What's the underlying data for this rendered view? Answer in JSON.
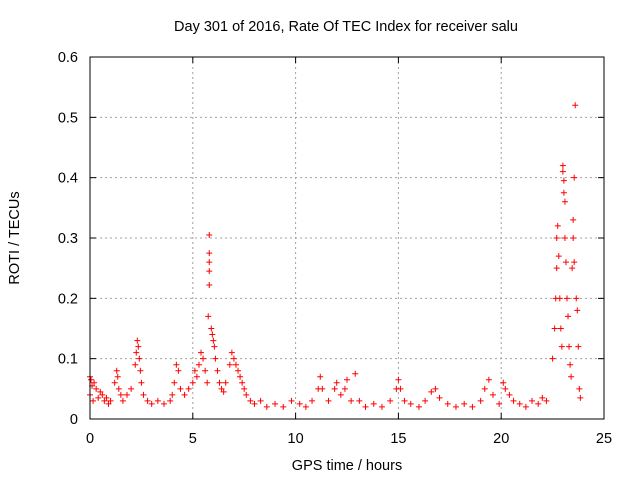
{
  "chart_data": {
    "type": "scatter",
    "title": "Day 301 of 2016, Rate Of TEC Index for receiver salu",
    "xlabel": "GPS time / hours",
    "ylabel": "ROTI / TECUs",
    "xlim": [
      0,
      25
    ],
    "ylim": [
      0,
      0.6
    ],
    "x_ticks": [
      0,
      5,
      10,
      15,
      20,
      25
    ],
    "x_tick_labels": [
      "0",
      "5",
      "10",
      "15",
      "20",
      "25"
    ],
    "y_ticks": [
      0,
      0.1,
      0.2,
      0.3,
      0.4,
      0.5,
      0.6
    ],
    "y_tick_labels": [
      "0",
      "0.1",
      "0.2",
      "0.3",
      "0.4",
      "0.5",
      "0.6"
    ],
    "grid": true,
    "marker": "plus",
    "color": "#ff0000",
    "series": [
      {
        "name": "ROTI",
        "points": [
          [
            0.0,
            0.07
          ],
          [
            0.0,
            0.04
          ],
          [
            0.05,
            0.065
          ],
          [
            0.1,
            0.055
          ],
          [
            0.15,
            0.03
          ],
          [
            0.2,
            0.06
          ],
          [
            0.3,
            0.05
          ],
          [
            0.4,
            0.035
          ],
          [
            0.5,
            0.045
          ],
          [
            0.6,
            0.04
          ],
          [
            0.7,
            0.03
          ],
          [
            0.8,
            0.035
          ],
          [
            0.9,
            0.025
          ],
          [
            1.0,
            0.03
          ],
          [
            1.2,
            0.06
          ],
          [
            1.3,
            0.08
          ],
          [
            1.35,
            0.07
          ],
          [
            1.4,
            0.05
          ],
          [
            1.5,
            0.04
          ],
          [
            1.6,
            0.03
          ],
          [
            1.8,
            0.04
          ],
          [
            2.0,
            0.05
          ],
          [
            2.2,
            0.09
          ],
          [
            2.25,
            0.11
          ],
          [
            2.3,
            0.13
          ],
          [
            2.35,
            0.12
          ],
          [
            2.4,
            0.1
          ],
          [
            2.45,
            0.08
          ],
          [
            2.5,
            0.06
          ],
          [
            2.6,
            0.04
          ],
          [
            2.8,
            0.03
          ],
          [
            3.0,
            0.025
          ],
          [
            3.3,
            0.03
          ],
          [
            3.6,
            0.025
          ],
          [
            3.9,
            0.03
          ],
          [
            4.0,
            0.04
          ],
          [
            4.1,
            0.06
          ],
          [
            4.2,
            0.09
          ],
          [
            4.3,
            0.08
          ],
          [
            4.4,
            0.05
          ],
          [
            4.6,
            0.04
          ],
          [
            4.8,
            0.05
          ],
          [
            5.0,
            0.06
          ],
          [
            5.1,
            0.08
          ],
          [
            5.2,
            0.07
          ],
          [
            5.3,
            0.09
          ],
          [
            5.4,
            0.11
          ],
          [
            5.5,
            0.1
          ],
          [
            5.6,
            0.08
          ],
          [
            5.7,
            0.06
          ],
          [
            5.75,
            0.17
          ],
          [
            5.8,
            0.305
          ],
          [
            5.8,
            0.275
          ],
          [
            5.8,
            0.26
          ],
          [
            5.8,
            0.245
          ],
          [
            5.8,
            0.222
          ],
          [
            5.9,
            0.15
          ],
          [
            5.95,
            0.14
          ],
          [
            6.0,
            0.13
          ],
          [
            6.05,
            0.12
          ],
          [
            6.1,
            0.1
          ],
          [
            6.2,
            0.08
          ],
          [
            6.3,
            0.06
          ],
          [
            6.4,
            0.05
          ],
          [
            6.5,
            0.045
          ],
          [
            6.6,
            0.06
          ],
          [
            6.8,
            0.09
          ],
          [
            6.9,
            0.11
          ],
          [
            7.0,
            0.1
          ],
          [
            7.1,
            0.09
          ],
          [
            7.2,
            0.08
          ],
          [
            7.3,
            0.07
          ],
          [
            7.4,
            0.06
          ],
          [
            7.5,
            0.05
          ],
          [
            7.6,
            0.04
          ],
          [
            7.8,
            0.03
          ],
          [
            8.0,
            0.025
          ],
          [
            8.3,
            0.03
          ],
          [
            8.6,
            0.02
          ],
          [
            9.0,
            0.025
          ],
          [
            9.4,
            0.02
          ],
          [
            9.8,
            0.03
          ],
          [
            10.2,
            0.025
          ],
          [
            10.5,
            0.02
          ],
          [
            10.8,
            0.03
          ],
          [
            11.1,
            0.05
          ],
          [
            11.2,
            0.07
          ],
          [
            11.3,
            0.05
          ],
          [
            11.6,
            0.03
          ],
          [
            11.9,
            0.05
          ],
          [
            12.0,
            0.06
          ],
          [
            12.2,
            0.04
          ],
          [
            12.4,
            0.05
          ],
          [
            12.5,
            0.065
          ],
          [
            12.7,
            0.03
          ],
          [
            12.9,
            0.075
          ],
          [
            13.1,
            0.03
          ],
          [
            13.4,
            0.02
          ],
          [
            13.8,
            0.025
          ],
          [
            14.2,
            0.02
          ],
          [
            14.6,
            0.03
          ],
          [
            14.9,
            0.05
          ],
          [
            15.0,
            0.065
          ],
          [
            15.1,
            0.05
          ],
          [
            15.3,
            0.03
          ],
          [
            15.6,
            0.025
          ],
          [
            16.0,
            0.02
          ],
          [
            16.3,
            0.03
          ],
          [
            16.6,
            0.045
          ],
          [
            16.8,
            0.05
          ],
          [
            17.0,
            0.035
          ],
          [
            17.4,
            0.025
          ],
          [
            17.8,
            0.02
          ],
          [
            18.2,
            0.025
          ],
          [
            18.6,
            0.02
          ],
          [
            19.0,
            0.03
          ],
          [
            19.2,
            0.05
          ],
          [
            19.4,
            0.065
          ],
          [
            19.6,
            0.04
          ],
          [
            19.9,
            0.025
          ],
          [
            20.1,
            0.06
          ],
          [
            20.2,
            0.05
          ],
          [
            20.4,
            0.04
          ],
          [
            20.6,
            0.03
          ],
          [
            20.9,
            0.025
          ],
          [
            21.2,
            0.02
          ],
          [
            21.5,
            0.03
          ],
          [
            21.8,
            0.025
          ],
          [
            22.0,
            0.035
          ],
          [
            22.2,
            0.03
          ],
          [
            22.5,
            0.1
          ],
          [
            22.6,
            0.15
          ],
          [
            22.65,
            0.2
          ],
          [
            22.7,
            0.25
          ],
          [
            22.7,
            0.3
          ],
          [
            22.75,
            0.32
          ],
          [
            22.8,
            0.27
          ],
          [
            22.85,
            0.2
          ],
          [
            22.9,
            0.15
          ],
          [
            22.95,
            0.12
          ],
          [
            23.0,
            0.42
          ],
          [
            23.0,
            0.41
          ],
          [
            23.05,
            0.395
          ],
          [
            23.05,
            0.375
          ],
          [
            23.1,
            0.36
          ],
          [
            23.1,
            0.3
          ],
          [
            23.15,
            0.26
          ],
          [
            23.2,
            0.2
          ],
          [
            23.25,
            0.17
          ],
          [
            23.3,
            0.12
          ],
          [
            23.35,
            0.09
          ],
          [
            23.4,
            0.07
          ],
          [
            23.45,
            0.25
          ],
          [
            23.5,
            0.33
          ],
          [
            23.5,
            0.3
          ],
          [
            23.55,
            0.4
          ],
          [
            23.55,
            0.26
          ],
          [
            23.6,
            0.52
          ],
          [
            23.65,
            0.2
          ],
          [
            23.7,
            0.18
          ],
          [
            23.75,
            0.12
          ],
          [
            23.8,
            0.05
          ],
          [
            23.85,
            0.035
          ]
        ]
      }
    ]
  }
}
